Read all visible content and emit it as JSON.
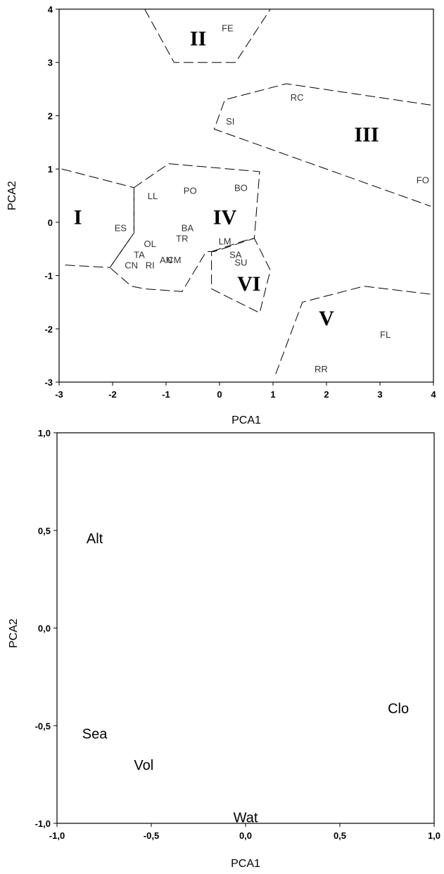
{
  "chart_data": [
    {
      "type": "scatter",
      "title": "",
      "xlabel": "PCA1",
      "ylabel": "PCA2",
      "xlim": [
        -3,
        4
      ],
      "ylim": [
        -3,
        4
      ],
      "xticks": [
        "-3",
        "-2",
        "-1",
        "0",
        "1",
        "2",
        "3",
        "4"
      ],
      "yticks": [
        "-3",
        "-2",
        "-1",
        "0",
        "1",
        "2",
        "3",
        "4"
      ],
      "points": [
        {
          "label": "FE",
          "x": 0.15,
          "y": 3.65
        },
        {
          "label": "RC",
          "x": 1.45,
          "y": 2.35
        },
        {
          "label": "SI",
          "x": 0.2,
          "y": 1.9
        },
        {
          "label": "FO",
          "x": 3.8,
          "y": 0.8
        },
        {
          "label": "LL",
          "x": -1.25,
          "y": 0.5
        },
        {
          "label": "PO",
          "x": -0.55,
          "y": 0.6
        },
        {
          "label": "BO",
          "x": 0.4,
          "y": 0.65
        },
        {
          "label": "ES",
          "x": -1.85,
          "y": -0.1
        },
        {
          "label": "BA",
          "x": -0.6,
          "y": -0.1
        },
        {
          "label": "TR",
          "x": -0.7,
          "y": -0.3
        },
        {
          "label": "OL",
          "x": -1.3,
          "y": -0.4
        },
        {
          "label": "LM",
          "x": 0.1,
          "y": -0.35
        },
        {
          "label": "TA",
          "x": -1.5,
          "y": -0.6
        },
        {
          "label": "SA",
          "x": 0.3,
          "y": -0.6
        },
        {
          "label": "AN",
          "x": -1.0,
          "y": -0.7
        },
        {
          "label": "CM",
          "x": -0.85,
          "y": -0.7
        },
        {
          "label": "SU",
          "x": 0.4,
          "y": -0.75
        },
        {
          "label": "CN",
          "x": -1.65,
          "y": -0.8
        },
        {
          "label": "RI",
          "x": -1.3,
          "y": -0.8
        },
        {
          "label": "FL",
          "x": 3.1,
          "y": -2.1
        },
        {
          "label": "RR",
          "x": 1.9,
          "y": -2.75
        }
      ],
      "regions": [
        {
          "label": "II",
          "label_pos": [
            -0.4,
            3.45
          ],
          "path": [
            [
              -1.4,
              4.0
            ],
            [
              -0.85,
              3.0
            ],
            [
              0.3,
              3.0
            ],
            [
              0.95,
              4.0
            ]
          ]
        },
        {
          "label": "III",
          "label_pos": [
            2.75,
            1.65
          ],
          "path": [
            [
              3.95,
              2.2
            ],
            [
              1.25,
              2.6
            ],
            [
              0.1,
              2.3
            ],
            [
              -0.1,
              1.75
            ],
            [
              3.95,
              0.3
            ]
          ]
        },
        {
          "label": "I",
          "label_pos": [
            -2.65,
            0.1
          ],
          "path": [
            [
              -2.95,
              1.0
            ],
            [
              -1.6,
              0.65
            ],
            [
              -1.6,
              -0.2
            ],
            [
              -2.05,
              -0.85
            ],
            [
              -2.95,
              -0.8
            ]
          ]
        },
        {
          "label": "IV",
          "label_pos": [
            0.1,
            0.1
          ],
          "path": [
            [
              -1.6,
              0.65
            ],
            [
              -0.95,
              1.1
            ],
            [
              0.75,
              0.95
            ],
            [
              0.65,
              -0.3
            ],
            [
              -0.1,
              -0.55
            ],
            [
              -0.25,
              -0.55
            ],
            [
              -0.7,
              -1.3
            ],
            [
              -1.4,
              -1.25
            ],
            [
              -1.65,
              -1.2
            ],
            [
              -2.05,
              -0.85
            ],
            [
              -1.6,
              -0.2
            ],
            [
              -1.6,
              0.65
            ]
          ]
        },
        {
          "label": "VI",
          "label_pos": [
            0.55,
            -1.15
          ],
          "path": [
            [
              -0.15,
              -0.55
            ],
            [
              0.45,
              -0.35
            ],
            [
              0.65,
              -0.3
            ],
            [
              0.95,
              -0.9
            ],
            [
              0.75,
              -1.7
            ],
            [
              0.15,
              -1.4
            ],
            [
              -0.15,
              -1.25
            ],
            [
              -0.15,
              -0.55
            ]
          ]
        },
        {
          "label": "V",
          "label_pos": [
            2.0,
            -1.8
          ],
          "path": [
            [
              1.05,
              -2.85
            ],
            [
              1.55,
              -1.5
            ],
            [
              2.7,
              -1.2
            ],
            [
              3.95,
              -1.35
            ]
          ]
        }
      ]
    },
    {
      "type": "scatter",
      "title": "",
      "xlabel": "PCA1",
      "ylabel": "PCA2",
      "xlim": [
        -1.0,
        1.0
      ],
      "ylim": [
        -1.0,
        1.0
      ],
      "xticks": [
        "-1,0",
        "-0,5",
        "0,0",
        "0,5",
        "1,0"
      ],
      "yticks": [
        "-1,0",
        "-0,5",
        "0,0",
        "0,5",
        "1,0"
      ],
      "points": [
        {
          "label": "Alt",
          "x": -0.8,
          "y": 0.46
        },
        {
          "label": "Clo",
          "x": 0.81,
          "y": -0.41
        },
        {
          "label": "Sea",
          "x": -0.8,
          "y": -0.54
        },
        {
          "label": "Vol",
          "x": -0.54,
          "y": -0.7
        },
        {
          "label": "Wat",
          "x": 0.0,
          "y": -0.97
        }
      ]
    }
  ]
}
